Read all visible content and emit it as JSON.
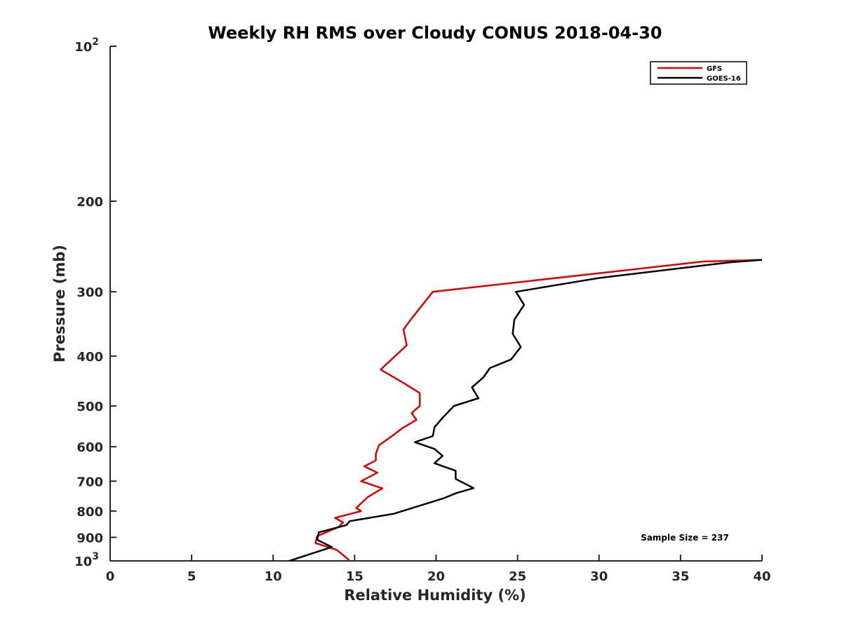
{
  "chart_data": {
    "type": "line",
    "title": "Weekly RH RMS over Cloudy CONUS 2018-04-30",
    "xlabel": "Relative Humidity (%)",
    "ylabel": "Pressure (mb)",
    "xlim": [
      0,
      40
    ],
    "ylim": [
      100,
      1000
    ],
    "y_scale": "log",
    "y_reversed": true,
    "grid": false,
    "legend_position": "top-right",
    "x_ticks": [
      0,
      5,
      10,
      15,
      20,
      25,
      30,
      35,
      40
    ],
    "x_tick_labels": [
      "0",
      "5",
      "10",
      "15",
      "20",
      "25",
      "30",
      "35",
      "40"
    ],
    "y_ticks": [
      100,
      200,
      300,
      400,
      500,
      600,
      700,
      800,
      900,
      1000
    ],
    "y_tick_labels": [
      {
        "base": "10",
        "exp": "2"
      },
      {
        "base": "200",
        "exp": ""
      },
      {
        "base": "300",
        "exp": ""
      },
      {
        "base": "400",
        "exp": ""
      },
      {
        "base": "500",
        "exp": ""
      },
      {
        "base": "600",
        "exp": ""
      },
      {
        "base": "700",
        "exp": ""
      },
      {
        "base": "800",
        "exp": ""
      },
      {
        "base": "900",
        "exp": ""
      },
      {
        "base": "10",
        "exp": "3"
      }
    ],
    "annotation": "Sample Size = 237",
    "series": [
      {
        "name": "GFS",
        "color": "#e00000",
        "points": [
          [
            40.0,
            260
          ],
          [
            36.4,
            262
          ],
          [
            19.8,
            300
          ],
          [
            19.2,
            317
          ],
          [
            18.5,
            338
          ],
          [
            18.0,
            355
          ],
          [
            18.2,
            381
          ],
          [
            16.6,
            425
          ],
          [
            18.1,
            453
          ],
          [
            19.0,
            472
          ],
          [
            19.0,
            500
          ],
          [
            18.5,
            516
          ],
          [
            18.8,
            532
          ],
          [
            17.9,
            553
          ],
          [
            17.3,
            572
          ],
          [
            16.5,
            596
          ],
          [
            16.3,
            620
          ],
          [
            16.3,
            638
          ],
          [
            15.6,
            655
          ],
          [
            16.4,
            674
          ],
          [
            15.4,
            700
          ],
          [
            16.7,
            723
          ],
          [
            15.8,
            752
          ],
          [
            15.1,
            789
          ],
          [
            15.4,
            800
          ],
          [
            13.8,
            825
          ],
          [
            14.3,
            842
          ],
          [
            14.0,
            860
          ],
          [
            12.7,
            895
          ],
          [
            12.6,
            923
          ],
          [
            13.9,
            952
          ],
          [
            14.5,
            986
          ],
          [
            14.7,
            1000
          ]
        ]
      },
      {
        "name": "GOES-16",
        "color": "#000000",
        "points": [
          [
            40.0,
            260
          ],
          [
            38.0,
            263
          ],
          [
            30.0,
            282
          ],
          [
            24.9,
            300
          ],
          [
            25.4,
            318
          ],
          [
            24.8,
            340
          ],
          [
            24.7,
            362
          ],
          [
            25.2,
            384
          ],
          [
            24.6,
            406
          ],
          [
            23.3,
            422
          ],
          [
            22.9,
            440
          ],
          [
            22.2,
            460
          ],
          [
            22.6,
            483
          ],
          [
            21.1,
            500
          ],
          [
            20.4,
            527
          ],
          [
            19.9,
            550
          ],
          [
            19.8,
            572
          ],
          [
            18.7,
            588
          ],
          [
            19.9,
            606
          ],
          [
            20.4,
            625
          ],
          [
            19.9,
            646
          ],
          [
            21.2,
            668
          ],
          [
            21.2,
            693
          ],
          [
            22.3,
            722
          ],
          [
            21.2,
            739
          ],
          [
            20.5,
            755
          ],
          [
            17.4,
            810
          ],
          [
            14.7,
            837
          ],
          [
            14.5,
            852
          ],
          [
            12.8,
            880
          ],
          [
            12.7,
            910
          ],
          [
            13.6,
            940
          ],
          [
            12.5,
            965
          ],
          [
            11.0,
            1000
          ]
        ]
      }
    ]
  }
}
